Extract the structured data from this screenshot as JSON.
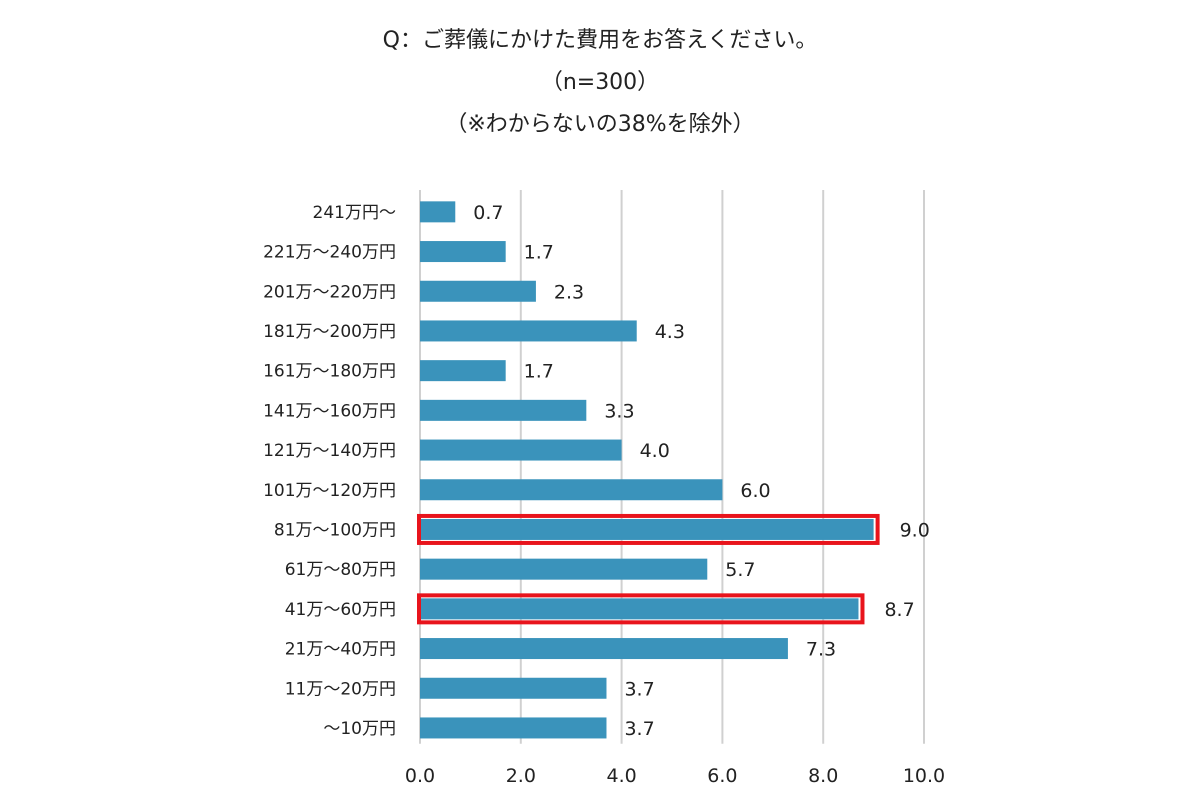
{
  "title": {
    "line1": "Q：ご葬儀にかけた費用をお答えください。",
    "line2": "（n=300）",
    "line3": "（※わからないの38%を除外）"
  },
  "colors": {
    "bar": "#3a93bb",
    "highlight": "#e8141c",
    "grid": "#d0d0d0",
    "text": "#222222"
  },
  "chart_data": {
    "type": "bar",
    "orientation": "horizontal",
    "categories": [
      "241万円～",
      "221万～240万円",
      "201万～220万円",
      "181万～200万円",
      "161万～180万円",
      "141万～160万円",
      "121万～140万円",
      "101万～120万円",
      "81万～100万円",
      "61万～80万円",
      "41万～60万円",
      "21万～40万円",
      "11万～20万円",
      "～10万円"
    ],
    "values": [
      0.7,
      1.7,
      2.3,
      4.3,
      1.7,
      3.3,
      4.0,
      6.0,
      9.0,
      5.7,
      8.7,
      7.3,
      3.7,
      3.7
    ],
    "value_labels": [
      "0.7",
      "1.7",
      "2.3",
      "4.3",
      "1.7",
      "3.3",
      "4.0",
      "6.0",
      "9.0",
      "5.7",
      "8.7",
      "7.3",
      "3.7",
      "3.7"
    ],
    "highlighted": [
      "81万～100万円",
      "41万～60万円"
    ],
    "xlim": [
      0,
      10
    ],
    "xticks": [
      "0.0",
      "2.0",
      "4.0",
      "6.0",
      "8.0",
      "10.0"
    ],
    "grid": true,
    "xlabel": "",
    "ylabel": ""
  }
}
